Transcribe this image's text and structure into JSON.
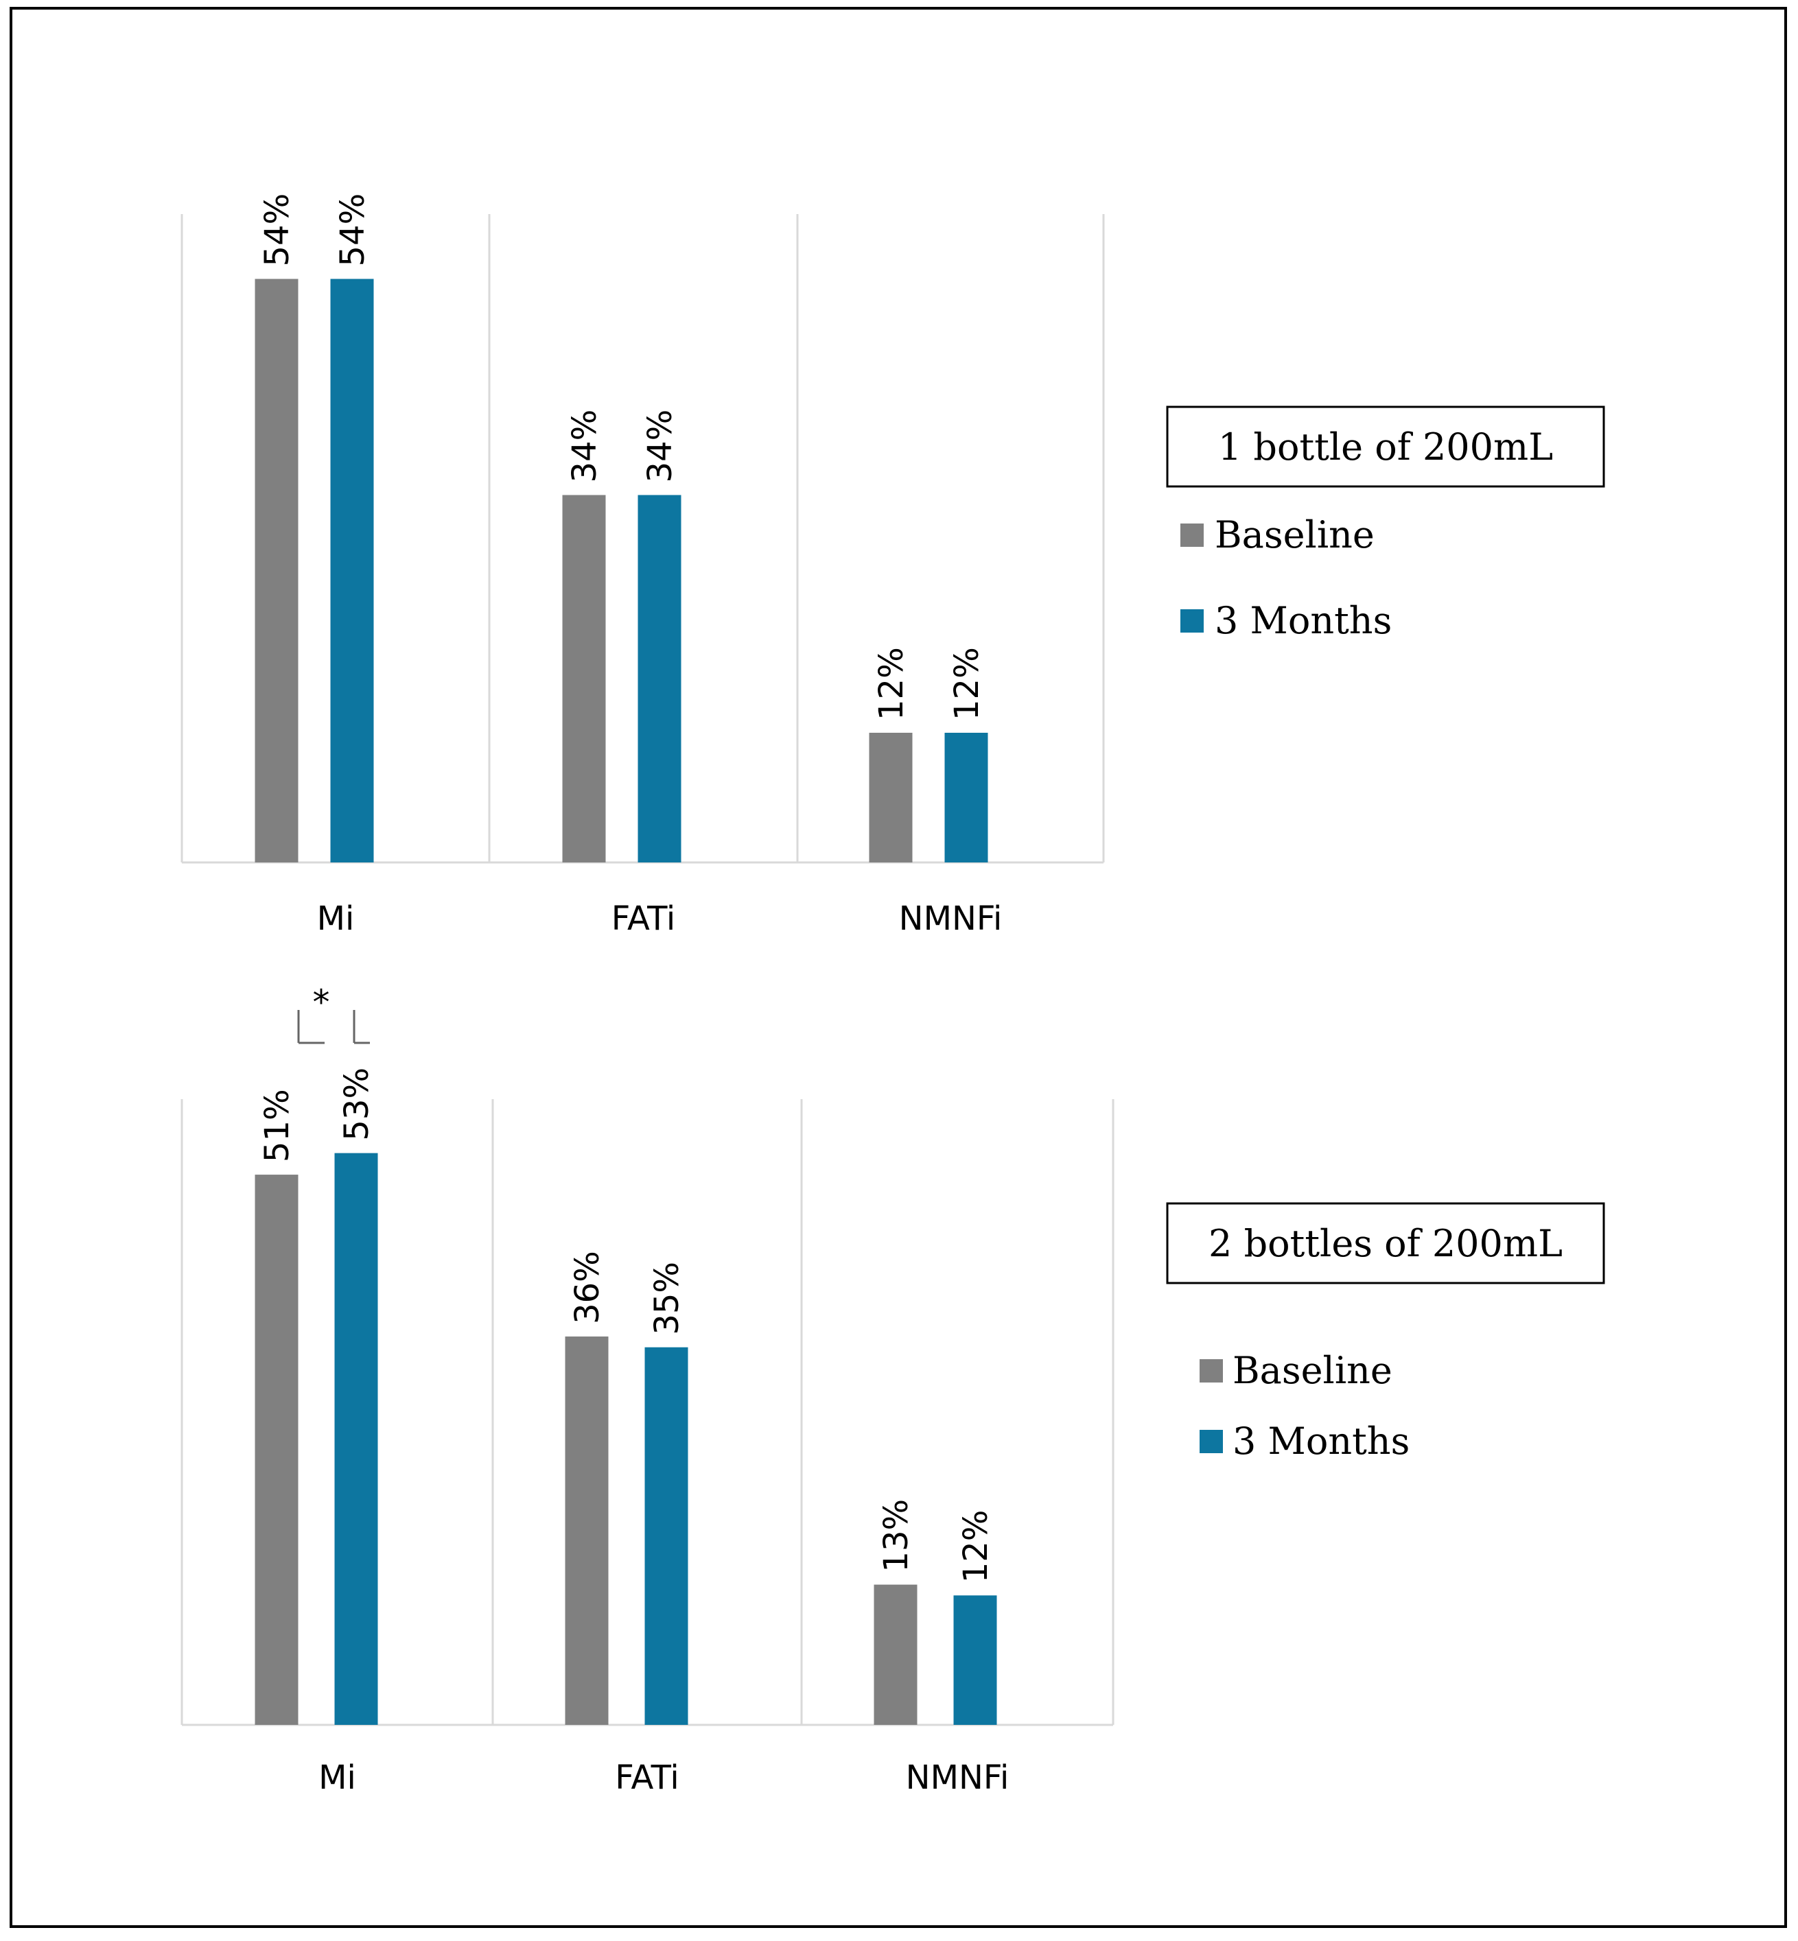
{
  "colors": {
    "baseline": "#808080",
    "three_months": "#0d76a0",
    "axis": "#d9d9d9",
    "gridline": "#d9d9d9"
  },
  "chart_data": [
    {
      "type": "bar",
      "categories": [
        "Mi",
        "FATi",
        "NMNFi"
      ],
      "series": [
        {
          "name": "Baseline",
          "values": [
            54,
            34,
            12
          ],
          "labels": [
            "54%",
            "34%",
            "12%"
          ]
        },
        {
          "name": "3 Months",
          "values": [
            54,
            34,
            12
          ],
          "labels": [
            "54%",
            "34%",
            "12%"
          ]
        }
      ],
      "legend_title": "1 bottle of 200mL",
      "legend_position": "right",
      "unit": "%",
      "ylim": [
        0,
        60
      ],
      "grid": "vertical category separators",
      "annotations": []
    },
    {
      "type": "bar",
      "categories": [
        "Mi",
        "FATi",
        "NMNFi"
      ],
      "series": [
        {
          "name": "Baseline",
          "values": [
            51,
            36,
            13
          ],
          "labels": [
            "51%",
            "36%",
            "13%"
          ]
        },
        {
          "name": "3 Months",
          "values": [
            53,
            35,
            12
          ],
          "labels": [
            "53%",
            "35%",
            "12%"
          ]
        }
      ],
      "legend_title": "2 bottles of 200mL",
      "legend_position": "right",
      "unit": "%",
      "ylim": [
        0,
        58
      ],
      "grid": "vertical category separators",
      "annotations": [
        {
          "category": "Mi",
          "text": "*"
        }
      ]
    }
  ]
}
